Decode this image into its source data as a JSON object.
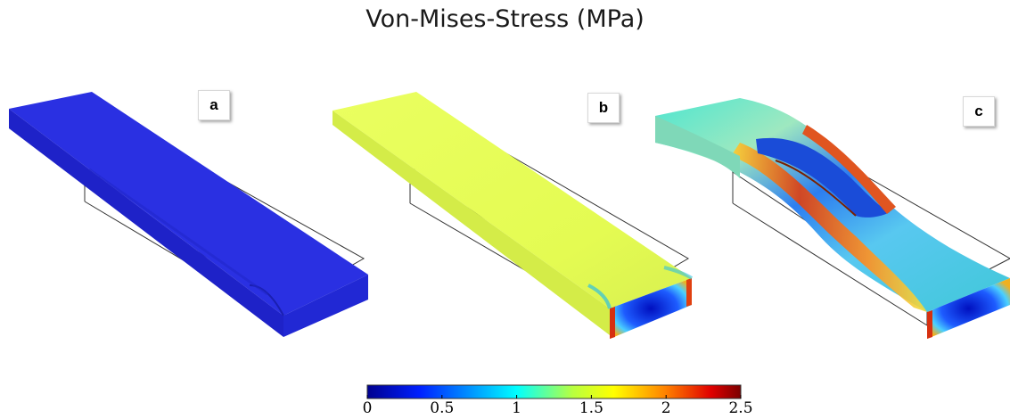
{
  "figure": {
    "title": "Von-Mises-Stress (MPa)",
    "panels": [
      {
        "label": "a"
      },
      {
        "label": "b"
      },
      {
        "label": "c"
      }
    ]
  },
  "colorbar": {
    "min": 0,
    "max": 2.5,
    "ticks": [
      "0",
      "0.5",
      "1",
      "1.5",
      "2",
      "2.5"
    ],
    "colormap": [
      "#00008f",
      "#0030ff",
      "#00d8ff",
      "#e8ff30",
      "#ff8a00",
      "#b00000",
      "#7a0000"
    ]
  },
  "colors": {
    "panel_a_top": "#2a32e0",
    "panel_b_top": "#e6ff55",
    "panel_c_top": "#2fa4e8",
    "stress_high": "#d42a10",
    "stress_mid": "#f0e23a",
    "stress_low": "#1b3ef0"
  }
}
